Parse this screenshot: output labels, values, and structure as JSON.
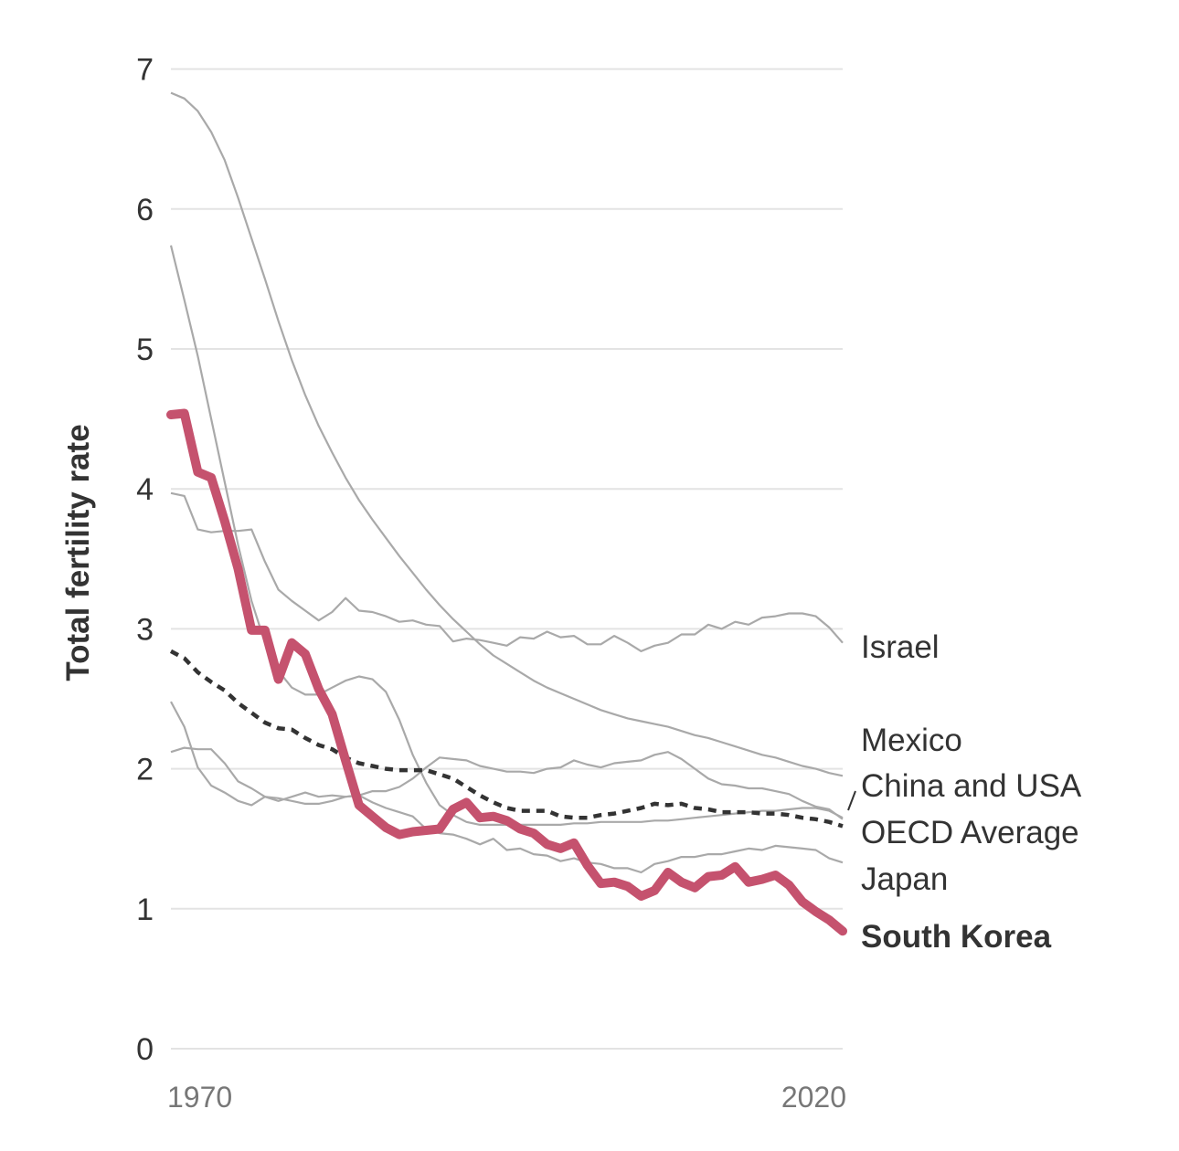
{
  "chart_data": {
    "type": "line",
    "title": "",
    "xlabel": "",
    "ylabel": "Total fertility rate",
    "xlim": [
      1970,
      2020
    ],
    "ylim": [
      0,
      7
    ],
    "y_ticks": [
      0,
      1,
      2,
      3,
      4,
      5,
      6,
      7
    ],
    "x_tick_labels": [
      "1970",
      "2020"
    ],
    "grid": "horizontal",
    "colors": {
      "highlight": "#c5526e",
      "other": "#a9a9a9",
      "average": "#333333"
    },
    "series": [
      {
        "name": "Israel",
        "style": "gray",
        "x": [
          1970,
          1971,
          1972,
          1973,
          1974,
          1975,
          1976,
          1977,
          1978,
          1979,
          1980,
          1981,
          1982,
          1983,
          1984,
          1985,
          1986,
          1987,
          1988,
          1989,
          1990,
          1991,
          1992,
          1993,
          1994,
          1995,
          1996,
          1997,
          1998,
          1999,
          2000,
          2001,
          2002,
          2003,
          2004,
          2005,
          2006,
          2007,
          2008,
          2009,
          2010,
          2011,
          2012,
          2013,
          2014,
          2015,
          2016,
          2017,
          2018,
          2019,
          2020
        ],
        "y": [
          3.97,
          3.95,
          3.71,
          3.69,
          3.7,
          3.7,
          3.71,
          3.48,
          3.28,
          3.2,
          3.13,
          3.06,
          3.12,
          3.22,
          3.13,
          3.12,
          3.09,
          3.05,
          3.06,
          3.03,
          3.02,
          2.91,
          2.93,
          2.92,
          2.9,
          2.88,
          2.94,
          2.93,
          2.98,
          2.94,
          2.95,
          2.89,
          2.89,
          2.95,
          2.9,
          2.84,
          2.88,
          2.9,
          2.96,
          2.96,
          3.03,
          3.0,
          3.05,
          3.03,
          3.08,
          3.09,
          3.11,
          3.11,
          3.09,
          3.01,
          2.9
        ]
      },
      {
        "name": "Mexico",
        "style": "gray",
        "x": [
          1970,
          1971,
          1972,
          1973,
          1974,
          1975,
          1976,
          1977,
          1978,
          1979,
          1980,
          1981,
          1982,
          1983,
          1984,
          1985,
          1986,
          1987,
          1988,
          1989,
          1990,
          1991,
          1992,
          1993,
          1994,
          1995,
          1996,
          1997,
          1998,
          1999,
          2000,
          2001,
          2002,
          2003,
          2004,
          2005,
          2006,
          2007,
          2008,
          2009,
          2010,
          2011,
          2012,
          2013,
          2014,
          2015,
          2016,
          2017,
          2018,
          2019,
          2020
        ],
        "y": [
          6.83,
          6.79,
          6.7,
          6.55,
          6.35,
          6.08,
          5.79,
          5.5,
          5.2,
          4.92,
          4.67,
          4.45,
          4.26,
          4.08,
          3.92,
          3.78,
          3.65,
          3.52,
          3.4,
          3.28,
          3.17,
          3.07,
          2.98,
          2.89,
          2.81,
          2.75,
          2.69,
          2.63,
          2.58,
          2.54,
          2.5,
          2.46,
          2.42,
          2.39,
          2.36,
          2.34,
          2.32,
          2.3,
          2.27,
          2.24,
          2.22,
          2.19,
          2.16,
          2.13,
          2.1,
          2.08,
          2.05,
          2.02,
          2.0,
          1.97,
          1.95
        ]
      },
      {
        "name": "China",
        "style": "gray",
        "x": [
          1970,
          1971,
          1972,
          1973,
          1974,
          1975,
          1976,
          1977,
          1978,
          1979,
          1980,
          1981,
          1982,
          1983,
          1984,
          1985,
          1986,
          1987,
          1988,
          1989,
          1990,
          1991,
          1992,
          1993,
          1994,
          1995,
          1996,
          1997,
          1998,
          1999,
          2000,
          2001,
          2002,
          2003,
          2004,
          2005,
          2006,
          2007,
          2008,
          2009,
          2010,
          2011,
          2012,
          2013,
          2014,
          2015,
          2016,
          2017,
          2018,
          2019,
          2020
        ],
        "y": [
          5.74,
          5.35,
          4.95,
          4.5,
          4.05,
          3.6,
          3.2,
          2.9,
          2.7,
          2.58,
          2.53,
          2.53,
          2.58,
          2.63,
          2.66,
          2.64,
          2.55,
          2.35,
          2.1,
          1.9,
          1.74,
          1.67,
          1.62,
          1.6,
          1.6,
          1.6,
          1.6,
          1.6,
          1.6,
          1.6,
          1.61,
          1.61,
          1.62,
          1.62,
          1.62,
          1.62,
          1.63,
          1.63,
          1.64,
          1.65,
          1.66,
          1.67,
          1.68,
          1.69,
          1.7,
          1.7,
          1.71,
          1.72,
          1.72,
          1.7,
          1.65
        ]
      },
      {
        "name": "USA",
        "style": "gray",
        "x": [
          1970,
          1971,
          1972,
          1973,
          1974,
          1975,
          1976,
          1977,
          1978,
          1979,
          1980,
          1981,
          1982,
          1983,
          1984,
          1985,
          1986,
          1987,
          1988,
          1989,
          1990,
          1991,
          1992,
          1993,
          1994,
          1995,
          1996,
          1997,
          1998,
          1999,
          2000,
          2001,
          2002,
          2003,
          2004,
          2005,
          2006,
          2007,
          2008,
          2009,
          2010,
          2011,
          2012,
          2013,
          2014,
          2015,
          2016,
          2017,
          2018,
          2019,
          2020
        ],
        "y": [
          2.12,
          2.15,
          2.14,
          2.14,
          2.04,
          1.91,
          1.86,
          1.8,
          1.77,
          1.8,
          1.83,
          1.8,
          1.81,
          1.8,
          1.81,
          1.84,
          1.84,
          1.87,
          1.93,
          2.01,
          2.08,
          2.07,
          2.06,
          2.02,
          2.0,
          1.98,
          1.98,
          1.97,
          2.0,
          2.01,
          2.06,
          2.03,
          2.01,
          2.04,
          2.05,
          2.06,
          2.1,
          2.12,
          2.07,
          2.0,
          1.93,
          1.89,
          1.88,
          1.86,
          1.86,
          1.84,
          1.82,
          1.77,
          1.73,
          1.71,
          1.64
        ]
      },
      {
        "name": "Japan",
        "style": "gray",
        "x": [
          1970,
          1971,
          1972,
          1973,
          1974,
          1975,
          1976,
          1977,
          1978,
          1979,
          1980,
          1981,
          1982,
          1983,
          1984,
          1985,
          1986,
          1987,
          1988,
          1989,
          1990,
          1991,
          1992,
          1993,
          1994,
          1995,
          1996,
          1997,
          1998,
          1999,
          2000,
          2001,
          2002,
          2003,
          2004,
          2005,
          2006,
          2007,
          2008,
          2009,
          2010,
          2011,
          2012,
          2013,
          2014,
          2015,
          2016,
          2017,
          2018,
          2019,
          2020
        ],
        "y": [
          2.48,
          2.3,
          2.01,
          1.88,
          1.83,
          1.77,
          1.74,
          1.8,
          1.79,
          1.77,
          1.75,
          1.75,
          1.77,
          1.8,
          1.81,
          1.76,
          1.72,
          1.69,
          1.66,
          1.57,
          1.54,
          1.53,
          1.5,
          1.46,
          1.5,
          1.42,
          1.43,
          1.39,
          1.38,
          1.34,
          1.36,
          1.33,
          1.32,
          1.29,
          1.29,
          1.26,
          1.32,
          1.34,
          1.37,
          1.37,
          1.39,
          1.39,
          1.41,
          1.43,
          1.42,
          1.45,
          1.44,
          1.43,
          1.42,
          1.36,
          1.33
        ]
      },
      {
        "name": "OECD Average",
        "style": "oecd",
        "x": [
          1970,
          1971,
          1972,
          1973,
          1974,
          1975,
          1976,
          1977,
          1978,
          1979,
          1980,
          1981,
          1982,
          1983,
          1984,
          1985,
          1986,
          1987,
          1988,
          1989,
          1990,
          1991,
          1992,
          1993,
          1994,
          1995,
          1996,
          1997,
          1998,
          1999,
          2000,
          2001,
          2002,
          2003,
          2004,
          2005,
          2006,
          2007,
          2008,
          2009,
          2010,
          2011,
          2012,
          2013,
          2014,
          2015,
          2016,
          2017,
          2018,
          2019,
          2020
        ],
        "y": [
          2.84,
          2.79,
          2.69,
          2.62,
          2.56,
          2.47,
          2.4,
          2.33,
          2.29,
          2.28,
          2.22,
          2.17,
          2.14,
          2.08,
          2.04,
          2.02,
          2.0,
          1.99,
          1.99,
          1.99,
          1.96,
          1.93,
          1.87,
          1.81,
          1.76,
          1.72,
          1.7,
          1.7,
          1.7,
          1.66,
          1.65,
          1.65,
          1.67,
          1.68,
          1.7,
          1.72,
          1.75,
          1.74,
          1.75,
          1.72,
          1.71,
          1.69,
          1.69,
          1.69,
          1.68,
          1.68,
          1.67,
          1.65,
          1.64,
          1.62,
          1.59
        ]
      },
      {
        "name": "South Korea",
        "style": "korea",
        "x": [
          1970,
          1971,
          1972,
          1973,
          1974,
          1975,
          1976,
          1977,
          1978,
          1979,
          1980,
          1981,
          1982,
          1983,
          1984,
          1985,
          1986,
          1987,
          1988,
          1989,
          1990,
          1991,
          1992,
          1993,
          1994,
          1995,
          1996,
          1997,
          1998,
          1999,
          2000,
          2001,
          2002,
          2003,
          2004,
          2005,
          2006,
          2007,
          2008,
          2009,
          2010,
          2011,
          2012,
          2013,
          2014,
          2015,
          2016,
          2017,
          2018,
          2019,
          2020
        ],
        "y": [
          4.53,
          4.54,
          4.12,
          4.08,
          3.77,
          3.43,
          2.99,
          2.99,
          2.64,
          2.9,
          2.82,
          2.57,
          2.39,
          2.06,
          1.74,
          1.66,
          1.58,
          1.53,
          1.55,
          1.56,
          1.57,
          1.71,
          1.76,
          1.65,
          1.66,
          1.63,
          1.57,
          1.54,
          1.46,
          1.43,
          1.47,
          1.31,
          1.18,
          1.19,
          1.16,
          1.09,
          1.13,
          1.26,
          1.19,
          1.15,
          1.23,
          1.24,
          1.3,
          1.19,
          1.21,
          1.24,
          1.17,
          1.05,
          0.98,
          0.92,
          0.84
        ]
      }
    ],
    "end_labels": [
      {
        "text": "Israel",
        "bold": false
      },
      {
        "text": "Mexico",
        "bold": false
      },
      {
        "text": "China and USA",
        "bold": false
      },
      {
        "text": "OECD Average",
        "bold": false
      },
      {
        "text": "Japan",
        "bold": false
      },
      {
        "text": "South Korea",
        "bold": true
      }
    ]
  }
}
